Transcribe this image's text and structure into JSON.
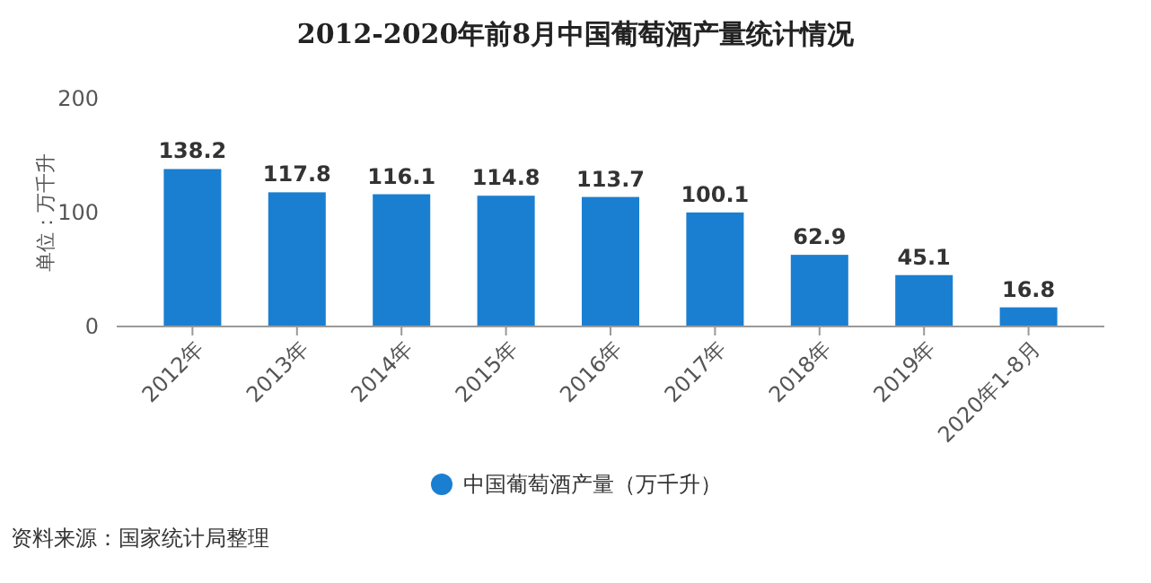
{
  "chart_data": {
    "type": "bar",
    "title": "2012-2020年前8月中国葡萄酒产量统计情况",
    "ylabel": "单位：万千升",
    "categories": [
      "2012年",
      "2013年",
      "2014年",
      "2015年",
      "2016年",
      "2017年",
      "2018年",
      "2019年",
      "2020年1-8月"
    ],
    "series": [
      {
        "name": "中国葡萄酒产量（万千升）",
        "color": "#1a7fd0",
        "values": [
          138.2,
          117.8,
          116.1,
          114.8,
          113.7,
          100.1,
          62.9,
          45.1,
          16.8
        ]
      }
    ],
    "ylim": [
      0,
      200
    ],
    "yticks": [
      0,
      100,
      200
    ],
    "grid": false,
    "legend": "bottom",
    "data_labels": true,
    "annotations": [
      "资料来源：国家统计局整理"
    ]
  }
}
